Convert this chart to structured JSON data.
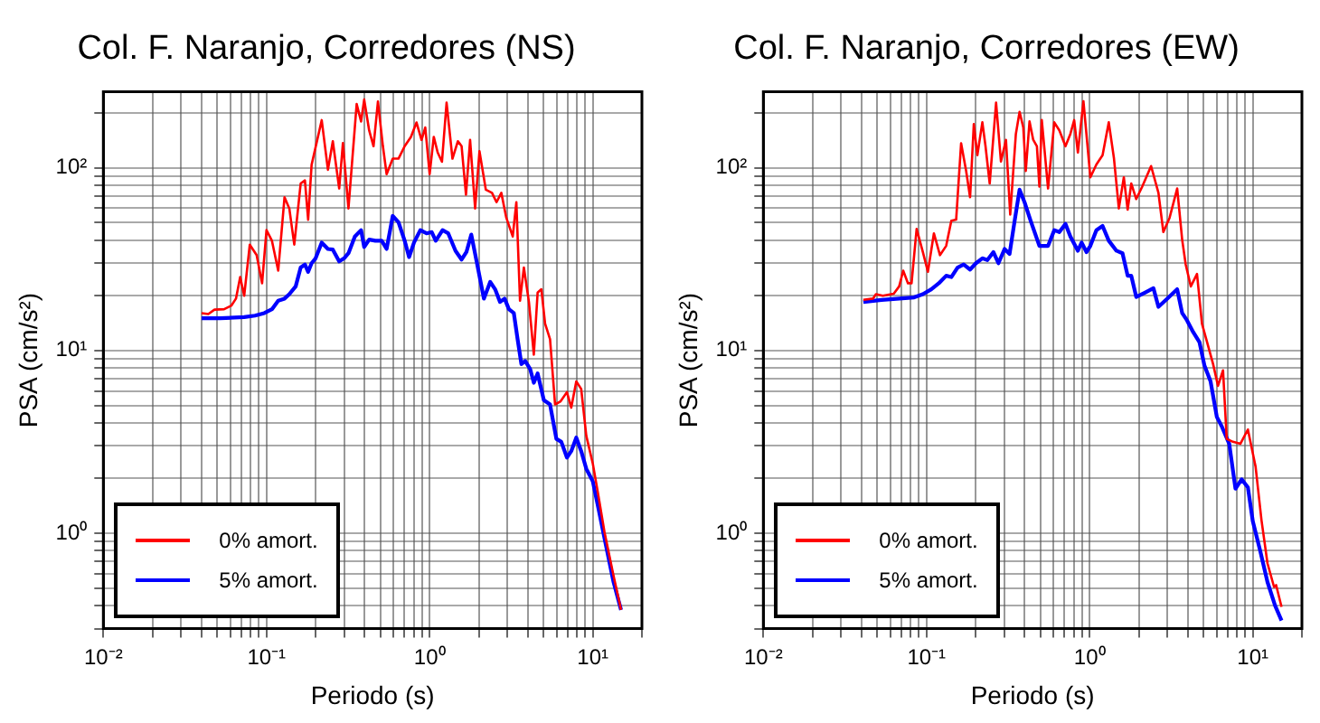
{
  "chart_data": [
    {
      "type": "line",
      "title": "Col. F. Naranjo, Corredores (NS)",
      "xlabel": "Periodo (s)",
      "ylabel": "PSA (cm/s²)",
      "log": "xy",
      "grid": true,
      "legend": "bottom left",
      "xlim": [
        0.01,
        20
      ],
      "ylim": [
        0.3,
        260
      ],
      "xticks": [
        {
          "value": 0.01,
          "label": "10⁻²"
        },
        {
          "value": 0.02,
          "label": null
        },
        {
          "value": 0.03,
          "label": null
        },
        {
          "value": 0.04,
          "label": null
        },
        {
          "value": 0.05,
          "label": null
        },
        {
          "value": 0.06,
          "label": null
        },
        {
          "value": 0.07,
          "label": null
        },
        {
          "value": 0.08,
          "label": null
        },
        {
          "value": 0.09,
          "label": null
        },
        {
          "value": 0.1,
          "label": "10⁻¹"
        },
        {
          "value": 0.2,
          "label": null
        },
        {
          "value": 0.3,
          "label": null
        },
        {
          "value": 0.4,
          "label": null
        },
        {
          "value": 0.5,
          "label": null
        },
        {
          "value": 0.6,
          "label": null
        },
        {
          "value": 0.7,
          "label": null
        },
        {
          "value": 0.8,
          "label": null
        },
        {
          "value": 0.9,
          "label": null
        },
        {
          "value": 1,
          "label": "10⁰"
        },
        {
          "value": 2,
          "label": null
        },
        {
          "value": 3,
          "label": null
        },
        {
          "value": 4,
          "label": null
        },
        {
          "value": 5,
          "label": null
        },
        {
          "value": 6,
          "label": null
        },
        {
          "value": 7,
          "label": null
        },
        {
          "value": 8,
          "label": null
        },
        {
          "value": 9,
          "label": null
        },
        {
          "value": 10,
          "label": "10¹"
        },
        {
          "value": 20,
          "label": null
        }
      ],
      "yticks": [
        {
          "value": 0.3,
          "label": null
        },
        {
          "value": 0.4,
          "label": null
        },
        {
          "value": 0.5,
          "label": null
        },
        {
          "value": 0.6,
          "label": null
        },
        {
          "value": 0.7,
          "label": null
        },
        {
          "value": 0.8,
          "label": null
        },
        {
          "value": 0.9,
          "label": null
        },
        {
          "value": 1,
          "label": "10⁰"
        },
        {
          "value": 2,
          "label": null
        },
        {
          "value": 3,
          "label": null
        },
        {
          "value": 4,
          "label": null
        },
        {
          "value": 5,
          "label": null
        },
        {
          "value": 6,
          "label": null
        },
        {
          "value": 7,
          "label": null
        },
        {
          "value": 8,
          "label": null
        },
        {
          "value": 9,
          "label": null
        },
        {
          "value": 10,
          "label": "10¹"
        },
        {
          "value": 20,
          "label": null
        },
        {
          "value": 30,
          "label": null
        },
        {
          "value": 40,
          "label": null
        },
        {
          "value": 50,
          "label": null
        },
        {
          "value": 60,
          "label": null
        },
        {
          "value": 70,
          "label": null
        },
        {
          "value": 80,
          "label": null
        },
        {
          "value": 90,
          "label": null
        },
        {
          "value": 100,
          "label": "10²"
        },
        {
          "value": 200,
          "label": null
        }
      ],
      "series": [
        {
          "name": "0% amort.",
          "color": "#ff0000",
          "x": [
            0.04,
            0.044,
            0.048,
            0.055,
            0.061,
            0.065,
            0.069,
            0.073,
            0.079,
            0.087,
            0.094,
            0.1,
            0.108,
            0.118,
            0.129,
            0.138,
            0.148,
            0.162,
            0.172,
            0.18,
            0.189,
            0.218,
            0.238,
            0.255,
            0.279,
            0.294,
            0.318,
            0.357,
            0.38,
            0.397,
            0.426,
            0.453,
            0.482,
            0.517,
            0.545,
            0.594,
            0.644,
            0.703,
            0.768,
            0.831,
            0.892,
            0.94,
            1.0,
            1.06,
            1.12,
            1.19,
            1.27,
            1.38,
            1.49,
            1.57,
            1.67,
            1.77,
            1.9,
            2.02,
            2.21,
            2.41,
            2.57,
            2.75,
            2.95,
            3.23,
            3.4,
            3.58,
            3.78,
            4.06,
            4.35,
            4.59,
            4.84,
            5.1,
            5.47,
            5.87,
            6.35,
            6.94,
            7.38,
            7.92,
            8.49,
            9.12,
            10.0,
            10.8,
            11.8,
            13.4,
            14.9
          ],
          "values": [
            16.0,
            15.8,
            16.7,
            16.8,
            17.6,
            19.2,
            25.2,
            19.9,
            37.9,
            33.2,
            23.3,
            45.5,
            39.8,
            27.3,
            68.9,
            59.8,
            37.9,
            81.9,
            85.1,
            51.9,
            103.6,
            182,
            97.3,
            139.6,
            76.9,
            136.4,
            59.8,
            223,
            179,
            236,
            159.6,
            131,
            230,
            131,
            92.1,
            112,
            112,
            131,
            147.4,
            176.6,
            141.8,
            166,
            92.1,
            147.4,
            121,
            107.7,
            227,
            112,
            139.6,
            131,
            71.1,
            141.8,
            59.8,
            123,
            75.7,
            72.8,
            64.7,
            72.8,
            53.2,
            42.0,
            64.7,
            18.7,
            28.4,
            18.4,
            9.47,
            20.7,
            21.6,
            14.0,
            11.5,
            5.06,
            5.26,
            5.91,
            4.86,
            6.76,
            6.15,
            3.41,
            2.4,
            1.62,
            1.01,
            0.585,
            0.38
          ]
        },
        {
          "name": "5% amort.",
          "color": "#0000ff",
          "x": [
            0.04,
            0.052,
            0.073,
            0.085,
            0.097,
            0.108,
            0.118,
            0.129,
            0.138,
            0.151,
            0.162,
            0.172,
            0.18,
            0.189,
            0.2,
            0.218,
            0.238,
            0.255,
            0.279,
            0.299,
            0.318,
            0.348,
            0.38,
            0.397,
            0.426,
            0.465,
            0.508,
            0.545,
            0.594,
            0.644,
            0.703,
            0.748,
            0.802,
            0.877,
            0.957,
            1.03,
            1.09,
            1.2,
            1.3,
            1.44,
            1.57,
            1.68,
            1.8,
            1.94,
            2.15,
            2.35,
            2.52,
            2.7,
            2.88,
            3.06,
            3.28,
            3.46,
            3.65,
            3.85,
            4.13,
            4.35,
            4.59,
            5.01,
            5.47,
            5.98,
            6.41,
            6.94,
            7.38,
            7.92,
            8.49,
            9.12,
            10.0,
            10.8,
            11.8,
            13.4,
            14.9
          ],
          "values": [
            15.0,
            15.0,
            15.2,
            15.5,
            16.0,
            16.8,
            18.7,
            19.2,
            20.3,
            22.4,
            28.4,
            29.5,
            26.9,
            30.0,
            31.9,
            38.9,
            35.9,
            35.6,
            30.7,
            31.9,
            34.0,
            42.0,
            45.5,
            36.8,
            40.4,
            39.8,
            39.8,
            35.9,
            54.4,
            50.3,
            39.8,
            32.4,
            38.9,
            45.5,
            43.7,
            44.4,
            39.8,
            45.5,
            43.7,
            35.1,
            31.4,
            34.5,
            43.0,
            30.7,
            19.2,
            23.7,
            21.6,
            18.4,
            19.2,
            16.8,
            16.0,
            11.5,
            8.41,
            8.75,
            7.91,
            6.65,
            7.48,
            5.34,
            5.06,
            3.28,
            3.16,
            2.59,
            2.81,
            3.33,
            2.81,
            2.25,
            1.92,
            1.38,
            0.935,
            0.54,
            0.38
          ]
        }
      ]
    },
    {
      "type": "line",
      "title": "Col. F. Naranjo, Corredores (EW)",
      "xlabel": "Periodo (s)",
      "ylabel": "PSA (cm/s²)",
      "log": "xy",
      "grid": true,
      "legend": "bottom left",
      "xlim": [
        0.01,
        20
      ],
      "ylim": [
        0.3,
        260
      ],
      "xticks": [
        {
          "value": 0.01,
          "label": "10⁻²"
        },
        {
          "value": 0.02,
          "label": null
        },
        {
          "value": 0.03,
          "label": null
        },
        {
          "value": 0.04,
          "label": null
        },
        {
          "value": 0.05,
          "label": null
        },
        {
          "value": 0.06,
          "label": null
        },
        {
          "value": 0.07,
          "label": null
        },
        {
          "value": 0.08,
          "label": null
        },
        {
          "value": 0.09,
          "label": null
        },
        {
          "value": 0.1,
          "label": "10⁻¹"
        },
        {
          "value": 0.2,
          "label": null
        },
        {
          "value": 0.3,
          "label": null
        },
        {
          "value": 0.4,
          "label": null
        },
        {
          "value": 0.5,
          "label": null
        },
        {
          "value": 0.6,
          "label": null
        },
        {
          "value": 0.7,
          "label": null
        },
        {
          "value": 0.8,
          "label": null
        },
        {
          "value": 0.9,
          "label": null
        },
        {
          "value": 1,
          "label": "10⁰"
        },
        {
          "value": 2,
          "label": null
        },
        {
          "value": 3,
          "label": null
        },
        {
          "value": 4,
          "label": null
        },
        {
          "value": 5,
          "label": null
        },
        {
          "value": 6,
          "label": null
        },
        {
          "value": 7,
          "label": null
        },
        {
          "value": 8,
          "label": null
        },
        {
          "value": 9,
          "label": null
        },
        {
          "value": 10,
          "label": "10¹"
        },
        {
          "value": 20,
          "label": null
        }
      ],
      "yticks": [
        {
          "value": 0.3,
          "label": null
        },
        {
          "value": 0.4,
          "label": null
        },
        {
          "value": 0.5,
          "label": null
        },
        {
          "value": 0.6,
          "label": null
        },
        {
          "value": 0.7,
          "label": null
        },
        {
          "value": 0.8,
          "label": null
        },
        {
          "value": 0.9,
          "label": null
        },
        {
          "value": 1,
          "label": "10⁰"
        },
        {
          "value": 2,
          "label": null
        },
        {
          "value": 3,
          "label": null
        },
        {
          "value": 4,
          "label": null
        },
        {
          "value": 5,
          "label": null
        },
        {
          "value": 6,
          "label": null
        },
        {
          "value": 7,
          "label": null
        },
        {
          "value": 8,
          "label": null
        },
        {
          "value": 9,
          "label": null
        },
        {
          "value": 10,
          "label": "10¹"
        },
        {
          "value": 20,
          "label": null
        },
        {
          "value": 30,
          "label": null
        },
        {
          "value": 40,
          "label": null
        },
        {
          "value": 50,
          "label": null
        },
        {
          "value": 60,
          "label": null
        },
        {
          "value": 70,
          "label": null
        },
        {
          "value": 80,
          "label": null
        },
        {
          "value": 90,
          "label": null
        },
        {
          "value": 100,
          "label": "10²"
        },
        {
          "value": 200,
          "label": null
        }
      ],
      "series": [
        {
          "name": "0% amort.",
          "color": "#ff0000",
          "x": [
            0.041,
            0.047,
            0.049,
            0.054,
            0.063,
            0.068,
            0.072,
            0.077,
            0.081,
            0.087,
            0.095,
            0.102,
            0.111,
            0.121,
            0.132,
            0.142,
            0.152,
            0.163,
            0.175,
            0.185,
            0.195,
            0.205,
            0.22,
            0.23,
            0.244,
            0.267,
            0.286,
            0.307,
            0.326,
            0.353,
            0.372,
            0.392,
            0.406,
            0.428,
            0.451,
            0.475,
            0.492,
            0.509,
            0.556,
            0.607,
            0.652,
            0.711,
            0.762,
            0.804,
            0.847,
            0.916,
            1.01,
            1.1,
            1.2,
            1.31,
            1.41,
            1.51,
            1.62,
            1.71,
            1.8,
            1.93,
            2.1,
            2.38,
            2.64,
            2.83,
            3.09,
            3.44,
            3.69,
            3.88,
            4.17,
            4.55,
            4.88,
            5.32,
            5.71,
            6.12,
            6.57,
            6.92,
            7.55,
            8.39,
            9.33,
            10.4,
            11.3,
            12.3,
            13.5,
            13.9,
            15.0
          ],
          "values": [
            18.9,
            19.2,
            20.3,
            19.9,
            20.4,
            22.4,
            27.3,
            23.3,
            23.3,
            46.2,
            34.5,
            26.9,
            43.7,
            33.2,
            37.3,
            51.2,
            51.9,
            136,
            95.8,
            68.9,
            173,
            117,
            177,
            131,
            81.9,
            227,
            108,
            142,
            55.3,
            153,
            202,
            166,
            95.8,
            179,
            142,
            131,
            78.7,
            182,
            76.9,
            177,
            160,
            131,
            153,
            182,
            121,
            231,
            88.5,
            104,
            117,
            177,
            112,
            59.8,
            88.5,
            58.9,
            81.9,
            67.3,
            78.7,
            102,
            72.8,
            44.4,
            53.2,
            76.9,
            40.4,
            29.5,
            22.4,
            26.2,
            14.0,
            10.6,
            8.41,
            6.4,
            7.78,
            3.28,
            3.16,
            3.08,
            3.69,
            2.31,
            1.18,
            0.684,
            0.507,
            0.519,
            0.395
          ]
        },
        {
          "name": "5% amort.",
          "color": "#0000ff",
          "x": [
            0.041,
            0.053,
            0.084,
            0.095,
            0.107,
            0.119,
            0.132,
            0.142,
            0.155,
            0.169,
            0.185,
            0.201,
            0.22,
            0.236,
            0.257,
            0.276,
            0.301,
            0.323,
            0.347,
            0.372,
            0.399,
            0.435,
            0.492,
            0.556,
            0.607,
            0.652,
            0.711,
            0.762,
            0.847,
            0.893,
            0.957,
            1.01,
            1.1,
            1.2,
            1.31,
            1.46,
            1.59,
            1.71,
            1.8,
            1.93,
            2.18,
            2.46,
            2.64,
            2.99,
            3.44,
            3.69,
            3.95,
            4.31,
            4.71,
            5.05,
            5.51,
            6.02,
            6.45,
            7.17,
            7.83,
            8.54,
            9.33,
            10.0,
            11.1,
            12.3,
            13.7,
            15.0
          ],
          "values": [
            18.4,
            18.9,
            19.5,
            20.3,
            21.6,
            23.3,
            25.6,
            25.2,
            28.4,
            29.5,
            27.7,
            30.0,
            31.9,
            31.2,
            34.5,
            30.0,
            35.9,
            33.7,
            51.2,
            75.7,
            64.7,
            51.2,
            37.3,
            37.3,
            45.5,
            44.4,
            49.2,
            42.0,
            35.1,
            38.9,
            34.5,
            37.3,
            45.5,
            48.0,
            39.8,
            35.1,
            34.0,
            25.6,
            25.6,
            19.6,
            20.7,
            21.9,
            17.3,
            19.2,
            21.6,
            16.0,
            14.6,
            12.6,
            11.1,
            8.28,
            6.76,
            4.32,
            3.84,
            3.08,
            1.75,
            1.97,
            1.78,
            1.16,
            0.8,
            0.54,
            0.401,
            0.332
          ]
        }
      ]
    }
  ]
}
